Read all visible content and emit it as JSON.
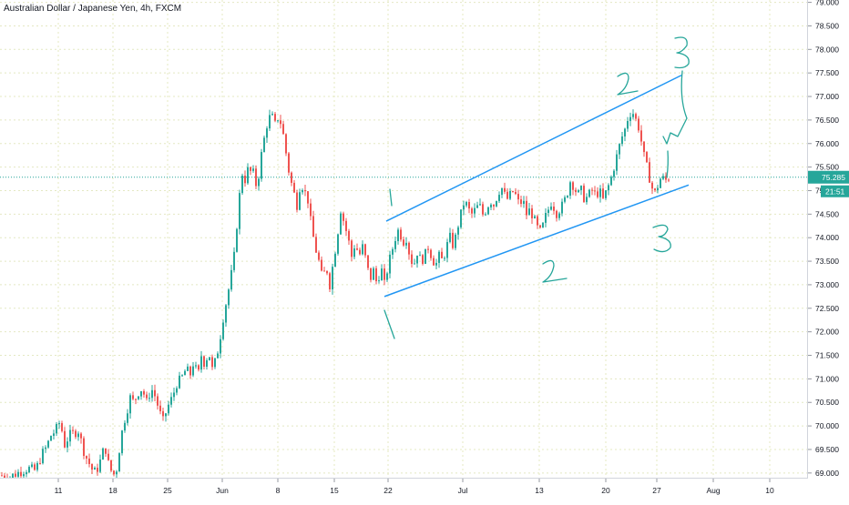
{
  "header": {
    "title": "Australian Dollar / Japanese Yen, 4h, FXCM"
  },
  "price_badge": {
    "price": "75.285",
    "countdown": "21:51"
  },
  "colors": {
    "up": "#26a69a",
    "down": "#ef5350",
    "grid": "#e4e8c2",
    "trendline": "#2196f3",
    "annotation": "#26a69a",
    "badge": "#26a69a"
  },
  "annotations": {
    "wave_labels": [
      "1",
      "1",
      "2",
      "2",
      "3",
      "3"
    ]
  },
  "chart_data": {
    "type": "candlestick",
    "title": "Australian Dollar / Japanese Yen, 4h, FXCM",
    "x_ticks": [
      "11",
      "18",
      "25",
      "Jun",
      "8",
      "15",
      "22",
      "Jul",
      "13",
      "20",
      "27",
      "Aug",
      "10"
    ],
    "y_ticks": [
      "69.000",
      "69.500",
      "70.000",
      "70.500",
      "71.000",
      "71.500",
      "72.000",
      "72.500",
      "73.000",
      "73.500",
      "74.000",
      "74.500",
      "75.000",
      "75.500",
      "76.000",
      "76.500",
      "77.000",
      "77.500",
      "78.000",
      "78.500",
      "79.000"
    ],
    "ylim": [
      68.9,
      79.05
    ],
    "last_price": 75.285,
    "grid": true,
    "price_path": [
      [
        0,
        68.95
      ],
      [
        10,
        68.92
      ],
      [
        18,
        69.0
      ],
      [
        30,
        69.1
      ],
      [
        38,
        69.05
      ],
      [
        45,
        69.4
      ],
      [
        50,
        69.55
      ],
      [
        55,
        69.8
      ],
      [
        60,
        69.9
      ],
      [
        65,
        70.1
      ],
      [
        70,
        69.6
      ],
      [
        75,
        69.8
      ],
      [
        85,
        69.9
      ],
      [
        92,
        69.4
      ],
      [
        97,
        69.2
      ],
      [
        102,
        69.0
      ],
      [
        106,
        69.1
      ],
      [
        110,
        69.3
      ],
      [
        114,
        69.6
      ],
      [
        118,
        69.2
      ],
      [
        122,
        69.0
      ],
      [
        126,
        68.95
      ],
      [
        130,
        69.5
      ],
      [
        134,
        70.0
      ],
      [
        138,
        70.3
      ],
      [
        142,
        70.6
      ],
      [
        146,
        70.5
      ],
      [
        150,
        70.7
      ],
      [
        155,
        70.8
      ],
      [
        160,
        70.5
      ],
      [
        165,
        70.8
      ],
      [
        170,
        70.6
      ],
      [
        174,
        70.3
      ],
      [
        178,
        70.1
      ],
      [
        183,
        70.4
      ],
      [
        188,
        70.6
      ],
      [
        193,
        70.9
      ],
      [
        198,
        71.0
      ],
      [
        203,
        71.2
      ],
      [
        208,
        71.1
      ],
      [
        212,
        71.4
      ],
      [
        216,
        71.0
      ],
      [
        220,
        71.5
      ],
      [
        224,
        71.3
      ],
      [
        228,
        71.6
      ],
      [
        232,
        71.2
      ],
      [
        236,
        71.4
      ],
      [
        240,
        71.8
      ],
      [
        244,
        72.3
      ],
      [
        248,
        72.7
      ],
      [
        252,
        73.1
      ],
      [
        256,
        73.6
      ],
      [
        260,
        74.5
      ],
      [
        263,
        75.1
      ],
      [
        266,
        75.5
      ],
      [
        269,
        75.1
      ],
      [
        272,
        75.6
      ],
      [
        275,
        75.3
      ],
      [
        278,
        75.4
      ],
      [
        281,
        75.0
      ],
      [
        284,
        75.5
      ],
      [
        287,
        75.9
      ],
      [
        290,
        76.2
      ],
      [
        293,
        76.5
      ],
      [
        297,
        76.6
      ],
      [
        301,
        76.4
      ],
      [
        305,
        76.6
      ],
      [
        309,
        76.3
      ],
      [
        313,
        75.8
      ],
      [
        317,
        75.3
      ],
      [
        321,
        75.0
      ],
      [
        325,
        74.7
      ],
      [
        329,
        75.2
      ],
      [
        333,
        75.0
      ],
      [
        337,
        74.8
      ],
      [
        341,
        74.2
      ],
      [
        345,
        73.8
      ],
      [
        349,
        73.5
      ],
      [
        353,
        73.1
      ],
      [
        357,
        73.4
      ],
      [
        361,
        73.0
      ],
      [
        365,
        73.5
      ],
      [
        369,
        74.0
      ],
      [
        373,
        74.6
      ],
      [
        377,
        74.3
      ],
      [
        381,
        74.0
      ],
      [
        385,
        73.6
      ],
      [
        389,
        73.9
      ],
      [
        393,
        73.6
      ],
      [
        397,
        73.8
      ],
      [
        401,
        73.5
      ],
      [
        405,
        73.1
      ],
      [
        409,
        73.3
      ],
      [
        413,
        73.0
      ],
      [
        417,
        73.4
      ],
      [
        421,
        73.0
      ],
      [
        425,
        73.4
      ],
      [
        429,
        73.7
      ],
      [
        433,
        74.0
      ],
      [
        437,
        74.2
      ],
      [
        441,
        73.9
      ],
      [
        445,
        74.0
      ],
      [
        449,
        73.6
      ],
      [
        453,
        73.4
      ],
      [
        457,
        73.7
      ],
      [
        461,
        73.5
      ],
      [
        465,
        73.6
      ],
      [
        469,
        73.8
      ],
      [
        473,
        73.6
      ],
      [
        477,
        73.4
      ],
      [
        481,
        73.6
      ],
      [
        485,
        73.5
      ],
      [
        489,
        73.8
      ],
      [
        493,
        74.0
      ],
      [
        497,
        73.8
      ],
      [
        501,
        74.2
      ],
      [
        505,
        74.5
      ],
      [
        509,
        74.8
      ],
      [
        513,
        74.6
      ],
      [
        517,
        74.5
      ],
      [
        521,
        74.6
      ],
      [
        525,
        74.7
      ],
      [
        529,
        74.5
      ],
      [
        533,
        74.6
      ],
      [
        537,
        74.8
      ],
      [
        541,
        74.7
      ],
      [
        545,
        74.9
      ],
      [
        549,
        75.1
      ],
      [
        553,
        74.9
      ],
      [
        557,
        74.8
      ],
      [
        561,
        75.0
      ],
      [
        565,
        74.9
      ],
      [
        569,
        74.7
      ],
      [
        573,
        74.8
      ],
      [
        577,
        74.5
      ],
      [
        581,
        74.6
      ],
      [
        585,
        74.4
      ],
      [
        589,
        74.2
      ],
      [
        593,
        74.1
      ],
      [
        597,
        74.4
      ],
      [
        601,
        74.6
      ],
      [
        605,
        74.8
      ],
      [
        609,
        74.5
      ],
      [
        613,
        74.6
      ],
      [
        617,
        74.7
      ],
      [
        621,
        74.9
      ],
      [
        625,
        75.2
      ],
      [
        629,
        75.1
      ],
      [
        633,
        74.9
      ],
      [
        637,
        75.0
      ],
      [
        641,
        74.8
      ],
      [
        645,
        74.9
      ],
      [
        649,
        75.0
      ],
      [
        653,
        74.9
      ],
      [
        657,
        75.0
      ],
      [
        661,
        74.8
      ],
      [
        665,
        75.0
      ],
      [
        669,
        75.2
      ],
      [
        673,
        75.5
      ],
      [
        677,
        75.8
      ],
      [
        681,
        76.1
      ],
      [
        685,
        76.3
      ],
      [
        689,
        76.6
      ],
      [
        693,
        76.7
      ],
      [
        697,
        76.5
      ],
      [
        701,
        76.3
      ],
      [
        705,
        75.8
      ],
      [
        709,
        75.5
      ],
      [
        713,
        75.2
      ],
      [
        717,
        74.9
      ],
      [
        721,
        75.1
      ],
      [
        725,
        75.3
      ],
      [
        729,
        75.2
      ],
      [
        733,
        75.285
      ]
    ]
  }
}
